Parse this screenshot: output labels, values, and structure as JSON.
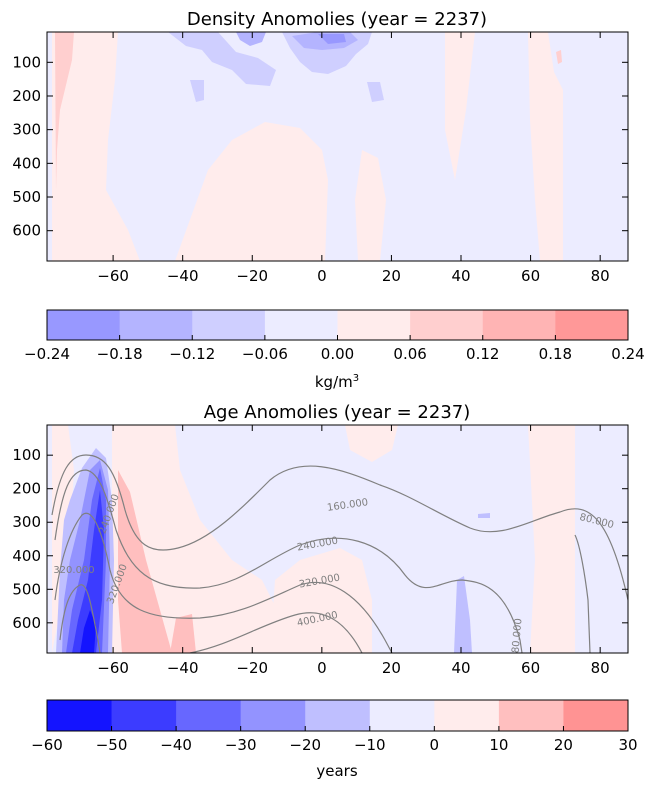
{
  "chart_data": [
    {
      "type": "contour",
      "title": "Density Anomolies (year = 2237)",
      "xticks": [
        "−60",
        "−40",
        "−20",
        "0",
        "20",
        "40",
        "60",
        "80"
      ],
      "xtick_values": [
        -60,
        -40,
        -20,
        0,
        20,
        40,
        60,
        80
      ],
      "yticks": [
        "100",
        "200",
        "300",
        "400",
        "500",
        "600"
      ],
      "ytick_values": [
        100,
        200,
        300,
        400,
        500,
        600
      ],
      "xlim": [
        -79,
        88
      ],
      "ylim": [
        690,
        10
      ],
      "y_inverted": true,
      "colorbar": {
        "levels": [
          "−0.24",
          "−0.18",
          "−0.12",
          "−0.06",
          "0.00",
          "0.06",
          "0.12",
          "0.18",
          "0.24"
        ],
        "level_values": [
          -0.24,
          -0.18,
          -0.12,
          -0.06,
          0.0,
          0.06,
          0.12,
          0.18,
          0.24
        ],
        "colors": [
          "#9898ff",
          "#b4b4ff",
          "#cfcfff",
          "#ececff",
          "#ffecec",
          "#ffcfcf",
          "#ffb4b4",
          "#ff9898"
        ],
        "label": "kg/m³",
        "label_base": "kg/m",
        "label_sup": "3"
      }
    },
    {
      "type": "contour",
      "title": "Age Anomolies (year = 2237)",
      "xticks": [
        "−60",
        "−40",
        "−20",
        "0",
        "20",
        "40",
        "60",
        "80"
      ],
      "xtick_values": [
        -60,
        -40,
        -20,
        0,
        20,
        40,
        60,
        80
      ],
      "yticks": [
        "100",
        "200",
        "300",
        "400",
        "500",
        "600"
      ],
      "ytick_values": [
        100,
        200,
        300,
        400,
        500,
        600
      ],
      "xlim": [
        -79,
        88
      ],
      "ylim": [
        690,
        10
      ],
      "y_inverted": true,
      "colorbar": {
        "levels": [
          "−60",
          "−50",
          "−40",
          "−30",
          "−20",
          "−10",
          "0",
          "10",
          "20",
          "30"
        ],
        "level_values": [
          -60,
          -50,
          -40,
          -30,
          -20,
          -10,
          0,
          10,
          20,
          30
        ],
        "colors": [
          "#1414ff",
          "#3c3cff",
          "#6767ff",
          "#9393ff",
          "#bfbfff",
          "#ececff",
          "#ffecec",
          "#ffbfbf",
          "#ff9393"
        ],
        "label": "years"
      },
      "contour_labels": [
        "160.000",
        "240.000",
        "320.000",
        "400.000",
        "240.000",
        "320.000",
        "320.000",
        "80.000",
        "80.000"
      ]
    }
  ]
}
